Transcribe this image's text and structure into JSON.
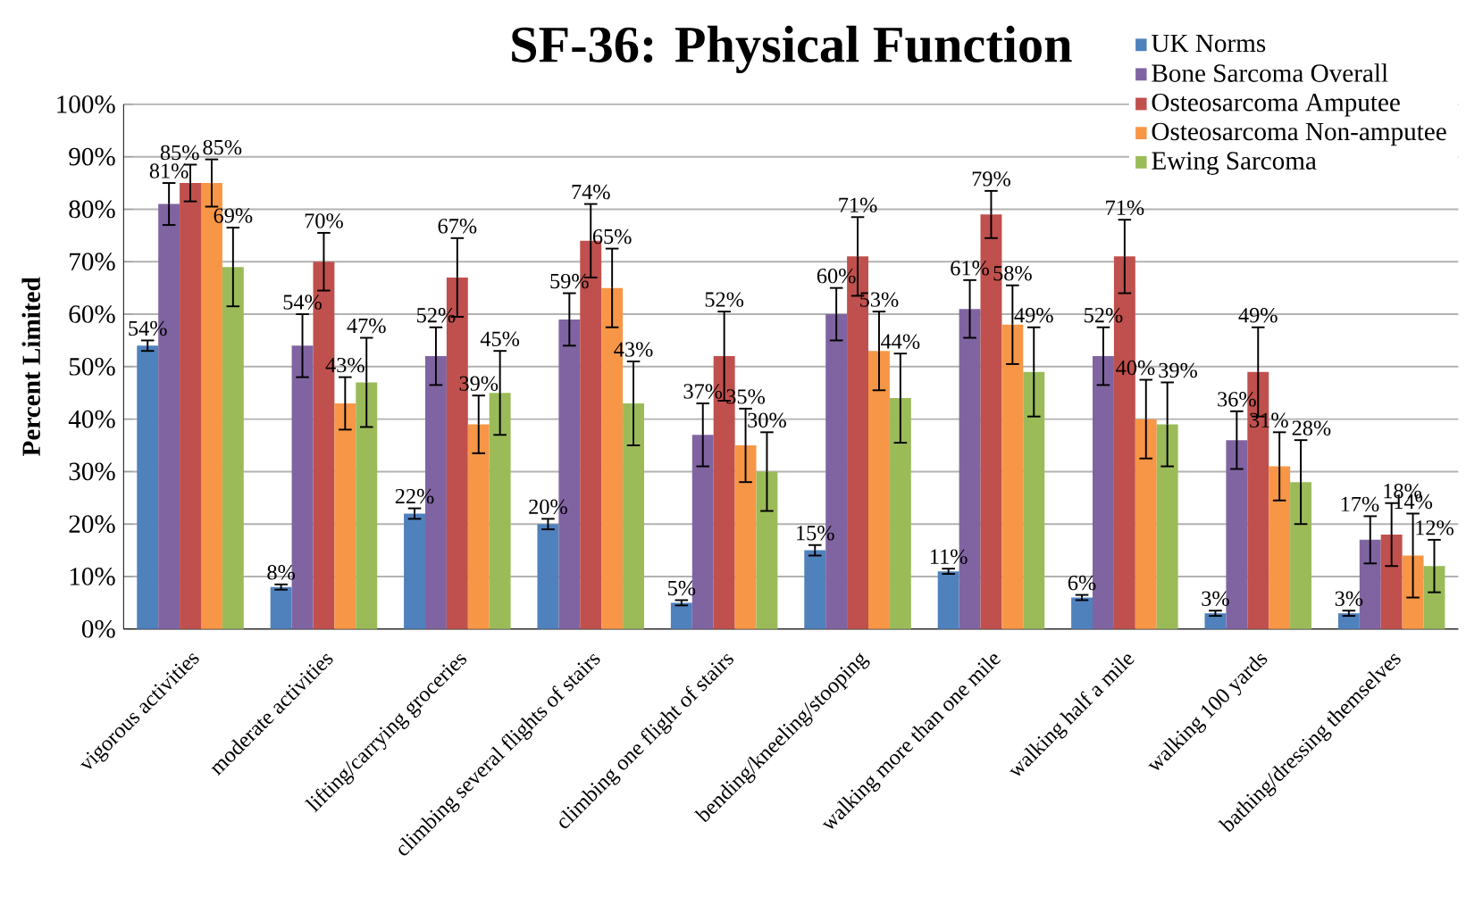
{
  "chart_data": {
    "type": "bar",
    "title": "SF-36: Physical Function",
    "ylabel": "Percent Limited",
    "categories": [
      "vigorous activities",
      "moderate activities",
      "lifting/carrying groceries",
      "climbing several flights of stairs",
      "climbing one flight of stairs",
      "bending/kneeling/stooping",
      "walking more than one mile",
      "walking half a mile",
      "walking 100 yards",
      "bathing/dressing themselves"
    ],
    "ylim": [
      0,
      100
    ],
    "yticks": [
      {
        "value": 0,
        "label": "0%"
      },
      {
        "value": 10,
        "label": "10%"
      },
      {
        "value": 20,
        "label": "20%"
      },
      {
        "value": 30,
        "label": "30%"
      },
      {
        "value": 40,
        "label": "40%"
      },
      {
        "value": 50,
        "label": "50%"
      },
      {
        "value": 60,
        "label": "60%"
      },
      {
        "value": 70,
        "label": "70%"
      },
      {
        "value": 80,
        "label": "80%"
      },
      {
        "value": 90,
        "label": "90%"
      },
      {
        "value": 100,
        "label": "100%"
      }
    ],
    "grid": "y",
    "legend": "top right",
    "series": [
      {
        "name": "UK Norms",
        "color": "#4f81bd",
        "values": [
          54,
          8,
          22,
          20,
          5,
          15,
          11,
          6,
          3,
          3
        ],
        "errors": [
          1,
          0.5,
          1,
          1,
          0.5,
          1,
          0.5,
          0.5,
          0.5,
          0.5
        ],
        "value_labels": [
          "54%",
          "8%",
          "22%",
          "20%",
          "5%",
          "15%",
          "11%",
          "6%",
          "3%",
          "3%"
        ]
      },
      {
        "name": "Bone Sarcoma Overall",
        "color": "#8064a2",
        "values": [
          81,
          54,
          52,
          59,
          37,
          60,
          61,
          52,
          36,
          17
        ],
        "errors": [
          4,
          6,
          5.5,
          5,
          6,
          5,
          5.5,
          5.5,
          5.5,
          4.5
        ],
        "value_labels": [
          "81%",
          "54%",
          "52%",
          "59%",
          "37%",
          "60%",
          "61%",
          "52%",
          "36%",
          "17%"
        ]
      },
      {
        "name": "Osteosarcoma Amputee",
        "color": "#c0504d",
        "values": [
          85,
          70,
          67,
          74,
          52,
          71,
          79,
          71,
          49,
          18
        ],
        "errors": [
          3.5,
          5.5,
          7.5,
          7,
          8.5,
          7.5,
          4.5,
          7,
          8.5,
          6
        ],
        "value_labels": [
          "85%",
          "70%",
          "67%",
          "74%",
          "52%",
          "71%",
          "79%",
          "71%",
          "49%",
          "18%"
        ]
      },
      {
        "name": "Osteosarcoma Non-amputee",
        "color": "#f79646",
        "values": [
          85,
          43,
          39,
          65,
          35,
          53,
          58,
          40,
          31,
          14
        ],
        "errors": [
          4.5,
          5,
          5.5,
          7.5,
          7,
          7.5,
          7.5,
          7.5,
          6.5,
          8
        ],
        "value_labels": [
          "85%",
          "43%",
          "39%",
          "65%",
          "35%",
          "53%",
          "58%",
          "40%",
          "31%",
          "14%"
        ]
      },
      {
        "name": "Ewing Sarcoma",
        "color": "#9bbb59",
        "values": [
          69,
          47,
          45,
          43,
          30,
          44,
          49,
          39,
          28,
          12
        ],
        "errors": [
          7.5,
          8.5,
          8,
          8,
          7.5,
          8.5,
          8.5,
          8,
          8,
          5
        ],
        "value_labels": [
          "69%",
          "47%",
          "45%",
          "43%",
          "30%",
          "44%",
          "49%",
          "39%",
          "28%",
          "12%"
        ]
      }
    ]
  }
}
